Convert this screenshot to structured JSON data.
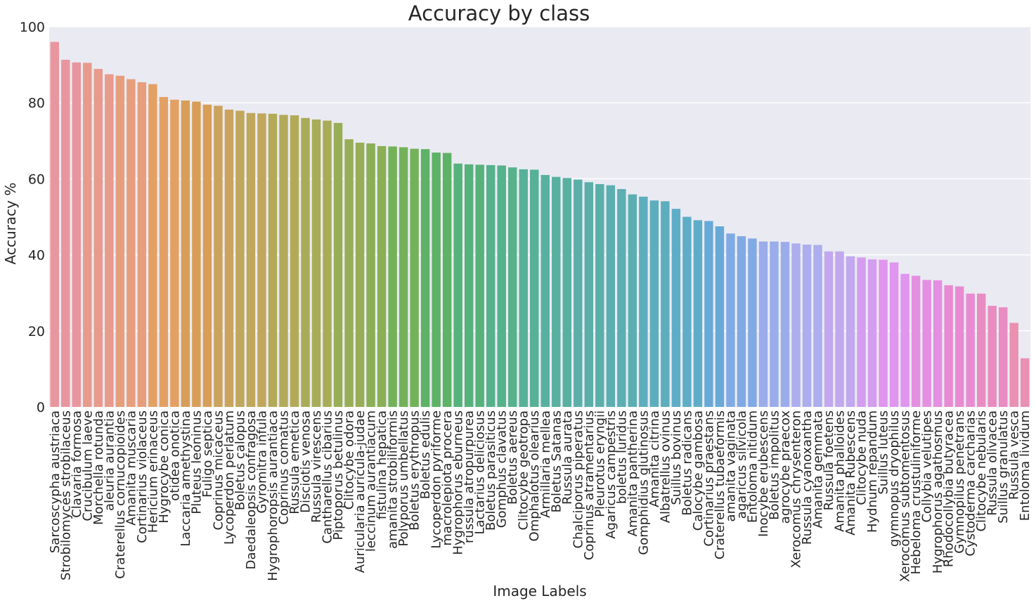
{
  "chart_data": {
    "type": "bar",
    "title": "Accuracy by class",
    "xlabel": "Image Labels",
    "ylabel": "Accuracy %",
    "ylim": [
      0,
      100
    ],
    "yticks": [
      0,
      20,
      40,
      60,
      80,
      100
    ],
    "grid": true,
    "categories": [
      "Sarcoscypha austriaca",
      "Strobilomyces strobilaceus",
      "Clavaria formosa",
      "Crucibulum laeve",
      "Morchella rotunda",
      "aleuria aurantia",
      "Craterellus cornucopioides",
      "Amanita muscaria",
      "Cortinarius violaceus",
      "Hericium erinaceus",
      "Hygrocybe conica",
      "otidea onotica",
      "Laccaria amethystina",
      "Pluteus leoninus",
      "Fuligo septica",
      "Coprinus micaceus",
      "Lycoperdon perlatum",
      "Boletus calopus",
      "Daedaleopsis confragosa",
      "Gyromitra infula",
      "Hygrophoropsis aurantiaca",
      "Coprinus comatus",
      "Russula emetica",
      "Disciotis venosa",
      "Russula virescens",
      "Cantharellus cibarius",
      "Piptoporus betulinus",
      "Clitocybe odora",
      "Auricularia auricula-judae",
      "leccinum aurantiacum",
      "fistulina hepatica",
      "amanita strobiliformis",
      "Polyporus umbellatus",
      "Boletus erythropus",
      "Boletus edulis",
      "Lycoperdon pyriforme",
      "macrolepiota procera",
      "Hygrophorus eburneus",
      "russula atropurpurea",
      "Lactarius deliciosus",
      "Boletus parasiticus",
      "Gomphus clavatus",
      "Boletus aereus",
      "Clitocybe geotropa",
      "Omphalotus olearius",
      "Armillaria mellea",
      "Boletus Satanas",
      "Russula aurata",
      "Chalciporus piperatus",
      "Coprinus atramentarius",
      "Pleurotus eryngii",
      "Agaricus campestris",
      "boletus luridus",
      "Amanita pantherina",
      "Gomphidius glutinosus",
      "Amanita citrina",
      "Albatrellus ovinus",
      "Suillus bovinus",
      "Boletus radicans",
      "Calocybe gambosa",
      "Cortinarius praestans",
      "Craterellus tubaeformis",
      "amanita vaginata",
      "agaricus silvicola",
      "Entoloma nitidum",
      "Inocybe erubescens",
      "Boletus impolitus",
      "agrocybe praecox",
      "Xerocomus chrysenteron",
      "Russula cyanoxantha",
      "Amanita gemmata",
      "Russula foetens",
      "Amanita phalloides",
      "Amanita Rubescens",
      "Clitocybe nuda",
      "Hydnum repandum",
      "Suillus luteus",
      "gymnopus dryophilus",
      "Xerocomus subtomentosus",
      "Hebeloma crustuliniforme",
      "Collybia velutipes",
      "Hygrophorus agathosmus",
      "Rhodocollybia butyracea",
      "Gymnopilus penetrans",
      "Cystoderma carcharias",
      "Clitocybe nebularis",
      "Russula olivacea",
      "Suillus granulatus",
      "Russula vesca",
      "Entoloma lividum"
    ],
    "values": [
      96.0,
      91.3,
      90.6,
      90.5,
      88.9,
      87.5,
      87.1,
      86.2,
      85.4,
      84.9,
      81.5,
      80.8,
      80.6,
      80.3,
      79.5,
      79.2,
      78.2,
      77.9,
      77.3,
      77.2,
      77.1,
      76.8,
      76.7,
      76.0,
      75.6,
      75.3,
      74.7,
      70.4,
      69.5,
      69.3,
      68.6,
      68.5,
      68.3,
      67.9,
      67.8,
      66.9,
      66.8,
      64.0,
      63.8,
      63.7,
      63.6,
      63.5,
      63.0,
      62.5,
      62.4,
      61.0,
      60.5,
      60.2,
      59.8,
      59.1,
      58.6,
      58.3,
      57.3,
      55.9,
      55.3,
      54.3,
      54.1,
      52.1,
      50.0,
      49.1,
      48.9,
      47.5,
      45.6,
      44.9,
      44.3,
      43.5,
      43.5,
      43.4,
      43.0,
      42.7,
      42.6,
      40.9,
      40.9,
      39.6,
      39.3,
      38.8,
      38.7,
      38.0,
      35.0,
      34.5,
      33.4,
      33.3,
      32.0,
      31.7,
      29.8,
      29.8,
      26.6,
      26.2,
      22.1,
      12.8
    ],
    "colors": [
      "#e9959d",
      "#e89a8c",
      "#e79e7c",
      "#e4a063",
      "#d89e57",
      "#cba35c",
      "#c0a75b",
      "#b3aa58",
      "#a8ac57",
      "#98ae56",
      "#8aaf55",
      "#73b259",
      "#5eb265",
      "#56b27b",
      "#55b28b",
      "#56b196",
      "#58b1a0",
      "#5aafa9",
      "#5bafb2",
      "#5caebd",
      "#5eadc8",
      "#67aad7",
      "#80aae4",
      "#9aacea",
      "#adaeee",
      "#c2a8ef",
      "#d49def",
      "#e095ee",
      "#e48fe1",
      "#e88bd2",
      "#e98cc1",
      "#ea90b0"
    ]
  }
}
